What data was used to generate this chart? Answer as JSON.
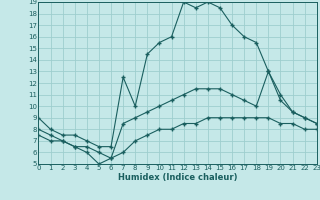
{
  "title": "",
  "xlabel": "Humidex (Indice chaleur)",
  "bg_color": "#c5e8e8",
  "grid_color": "#9ecece",
  "line_color": "#1a5f5f",
  "xmin": 0,
  "xmax": 23,
  "ymin": 5,
  "ymax": 19,
  "line1_x": [
    0,
    1,
    2,
    3,
    4,
    5,
    6,
    7,
    8,
    9,
    10,
    11,
    12,
    13,
    14,
    15,
    16,
    17,
    18,
    19,
    20,
    21,
    22,
    23
  ],
  "line1_y": [
    9.0,
    8.0,
    7.5,
    7.5,
    7.0,
    6.5,
    6.5,
    12.5,
    10.0,
    14.5,
    15.5,
    16.0,
    19.0,
    18.5,
    19.0,
    18.5,
    17.0,
    16.0,
    15.5,
    13.0,
    11.0,
    9.5,
    9.0,
    8.5
  ],
  "line2_x": [
    0,
    1,
    2,
    3,
    4,
    5,
    6,
    7,
    8,
    9,
    10,
    11,
    12,
    13,
    14,
    15,
    16,
    17,
    18,
    19,
    20,
    21,
    22,
    23
  ],
  "line2_y": [
    8.0,
    7.5,
    7.0,
    6.5,
    6.0,
    5.0,
    5.5,
    8.5,
    9.0,
    9.5,
    10.0,
    10.5,
    11.0,
    11.5,
    11.5,
    11.5,
    11.0,
    10.5,
    10.0,
    13.0,
    10.5,
    9.5,
    9.0,
    8.5
  ],
  "line3_x": [
    0,
    1,
    2,
    3,
    4,
    5,
    6,
    7,
    8,
    9,
    10,
    11,
    12,
    13,
    14,
    15,
    16,
    17,
    18,
    19,
    20,
    21,
    22,
    23
  ],
  "line3_y": [
    7.5,
    7.0,
    7.0,
    6.5,
    6.5,
    6.0,
    5.5,
    6.0,
    7.0,
    7.5,
    8.0,
    8.0,
    8.5,
    8.5,
    9.0,
    9.0,
    9.0,
    9.0,
    9.0,
    9.0,
    8.5,
    8.5,
    8.0,
    8.0
  ]
}
